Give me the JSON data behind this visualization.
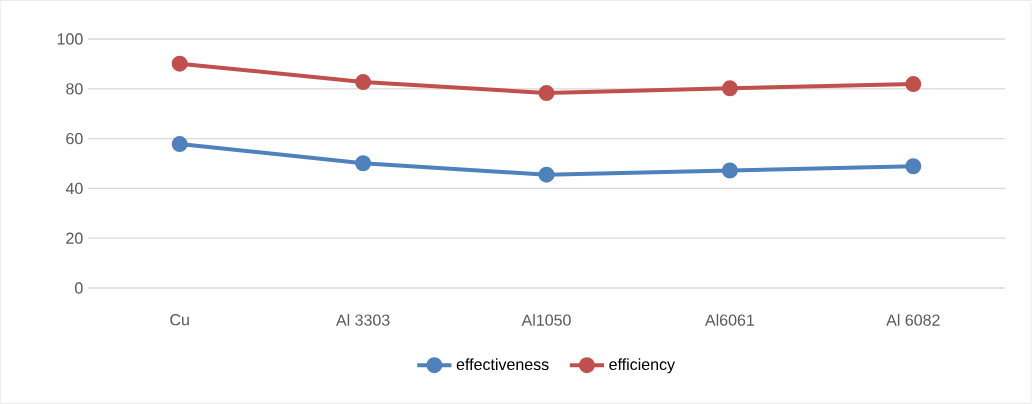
{
  "chart_data": {
    "type": "line",
    "categories": [
      "Cu",
      "Al 3303",
      "Al1050",
      "Al6061",
      "Al 6082"
    ],
    "series": [
      {
        "name": "effectiveness",
        "color": "#4f81bd",
        "values": [
          57.8,
          50.1,
          45.5,
          47.2,
          48.9
        ]
      },
      {
        "name": "efficiency",
        "color": "#c0504d",
        "values": [
          90.1,
          82.7,
          78.3,
          80.2,
          81.9
        ]
      }
    ],
    "ylim": [
      0,
      100
    ],
    "yticks": [
      0,
      20,
      40,
      60,
      80,
      100
    ],
    "grid": "y",
    "legend": "bottom",
    "marker": "circle",
    "line_style": "solid"
  }
}
